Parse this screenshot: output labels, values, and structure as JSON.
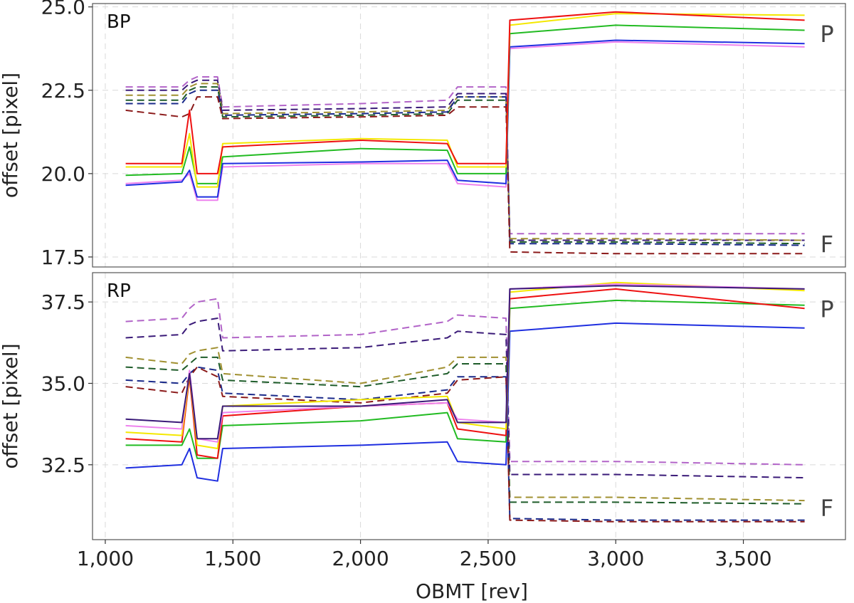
{
  "chart_data": [
    {
      "type": "line",
      "panel_label": "BP",
      "xlabel": "",
      "ylabel": "offset [pixel]",
      "xlim": [
        950,
        3900
      ],
      "ylim": [
        17.2,
        25.1
      ],
      "xticks": [
        1000,
        1500,
        2000,
        2500,
        3000,
        3500
      ],
      "xtick_labels": [
        "1,000",
        "1,500",
        "2,000",
        "2,500",
        "3,000",
        "3,500"
      ],
      "yticks": [
        17.5,
        20.0,
        22.5,
        25.0
      ],
      "ytick_labels": [
        "17.5",
        "20.0",
        "22.5",
        "25.0"
      ],
      "grid": true,
      "annotations": [
        {
          "text": "P",
          "y": 24.2
        },
        {
          "text": "F",
          "y": 17.9
        }
      ],
      "series": [
        {
          "name": "BP P violet",
          "color": "#ee82ee",
          "style": "solid",
          "x": [
            1080,
            1300,
            1330,
            1360,
            1440,
            1460,
            2000,
            2340,
            2380,
            2570,
            2585,
            3000,
            3740
          ],
          "y": [
            19.7,
            19.8,
            20.0,
            19.2,
            19.2,
            20.2,
            20.3,
            20.3,
            19.7,
            19.6,
            23.75,
            23.95,
            23.8
          ]
        },
        {
          "name": "BP P blue",
          "color": "#1f2fe0",
          "style": "solid",
          "x": [
            1080,
            1300,
            1330,
            1360,
            1440,
            1460,
            2000,
            2340,
            2380,
            2570,
            2585,
            3000,
            3740
          ],
          "y": [
            19.65,
            19.75,
            20.1,
            19.3,
            19.3,
            20.3,
            20.35,
            20.4,
            19.8,
            19.7,
            23.8,
            24.0,
            23.9
          ]
        },
        {
          "name": "BP P green",
          "color": "#22bb22",
          "style": "solid",
          "x": [
            1080,
            1300,
            1330,
            1360,
            1440,
            1460,
            2000,
            2340,
            2380,
            2570,
            2585,
            3000,
            3740
          ],
          "y": [
            19.95,
            20.0,
            20.8,
            19.7,
            19.7,
            20.5,
            20.75,
            20.7,
            20.0,
            20.0,
            24.2,
            24.45,
            24.3
          ]
        },
        {
          "name": "BP P yellow",
          "color": "#f4e800",
          "style": "solid",
          "x": [
            1080,
            1300,
            1330,
            1360,
            1440,
            1460,
            2000,
            2340,
            2380,
            2570,
            2585,
            3000,
            3740
          ],
          "y": [
            20.2,
            20.2,
            21.2,
            19.6,
            19.6,
            20.9,
            21.05,
            21.0,
            20.2,
            20.2,
            24.45,
            24.8,
            24.75
          ]
        },
        {
          "name": "BP P red",
          "color": "#ee1111",
          "style": "solid",
          "x": [
            1080,
            1300,
            1330,
            1360,
            1440,
            1460,
            2000,
            2340,
            2380,
            2570,
            2585,
            3000,
            3740
          ],
          "y": [
            20.3,
            20.3,
            21.9,
            20.0,
            20.0,
            20.8,
            21.0,
            20.9,
            20.3,
            20.3,
            24.6,
            24.85,
            24.6
          ]
        },
        {
          "name": "BP F violet",
          "color": "#b264c8",
          "style": "dashed",
          "x": [
            1080,
            1300,
            1330,
            1360,
            1440,
            1460,
            2000,
            2340,
            2380,
            2570,
            2585,
            3000,
            3740
          ],
          "y": [
            22.6,
            22.6,
            22.8,
            22.9,
            22.9,
            22.0,
            22.1,
            22.2,
            22.6,
            22.6,
            18.2,
            18.2,
            18.2
          ]
        },
        {
          "name": "BP F indigo",
          "color": "#3a1a78",
          "style": "dashed",
          "x": [
            1080,
            1300,
            1330,
            1360,
            1440,
            1460,
            2000,
            2340,
            2380,
            2570,
            2585,
            3000,
            3740
          ],
          "y": [
            22.5,
            22.5,
            22.7,
            22.8,
            22.8,
            21.9,
            21.95,
            22.0,
            22.4,
            22.4,
            18.0,
            18.0,
            18.0
          ]
        },
        {
          "name": "BP F olive",
          "color": "#a09030",
          "style": "dashed",
          "x": [
            1080,
            1300,
            1330,
            1360,
            1440,
            1460,
            2000,
            2340,
            2380,
            2570,
            2585,
            3000,
            3740
          ],
          "y": [
            22.35,
            22.35,
            22.6,
            22.7,
            22.7,
            21.8,
            21.85,
            21.9,
            22.3,
            22.3,
            18.05,
            18.05,
            18.0
          ]
        },
        {
          "name": "BP F dark green",
          "color": "#1e5c2a",
          "style": "dashed",
          "x": [
            1080,
            1300,
            1330,
            1360,
            1440,
            1460,
            2000,
            2340,
            2380,
            2570,
            2585,
            3000,
            3740
          ],
          "y": [
            22.2,
            22.2,
            22.5,
            22.6,
            22.6,
            21.7,
            21.75,
            21.8,
            22.2,
            22.2,
            17.95,
            17.95,
            17.9
          ]
        },
        {
          "name": "BP F navy",
          "color": "#1a2a8a",
          "style": "dashed",
          "x": [
            1080,
            1300,
            1330,
            1360,
            1440,
            1460,
            2000,
            2340,
            2380,
            2570,
            2585,
            3000,
            3740
          ],
          "y": [
            22.1,
            22.1,
            22.4,
            22.5,
            22.5,
            21.75,
            21.8,
            21.85,
            22.3,
            22.3,
            17.9,
            17.9,
            17.85
          ]
        },
        {
          "name": "BP F dark red",
          "color": "#8b1a1a",
          "style": "dashed",
          "x": [
            1080,
            1300,
            1330,
            1360,
            1440,
            1460,
            2000,
            2340,
            2380,
            2570,
            2585,
            3000,
            3740
          ],
          "y": [
            21.9,
            21.7,
            21.8,
            22.3,
            22.3,
            21.65,
            21.7,
            21.75,
            22.0,
            22.0,
            17.65,
            17.6,
            17.6
          ]
        }
      ]
    },
    {
      "type": "line",
      "panel_label": "RP",
      "xlabel": "OBMT [rev]",
      "ylabel": "offset [pixel]",
      "xlim": [
        950,
        3900
      ],
      "ylim": [
        30.2,
        38.4
      ],
      "xticks": [
        1000,
        1500,
        2000,
        2500,
        3000,
        3500
      ],
      "xtick_labels": [
        "1,000",
        "1,500",
        "2,000",
        "2,500",
        "3,000",
        "3,500"
      ],
      "yticks": [
        32.5,
        35.0,
        37.5
      ],
      "ytick_labels": [
        "32.5",
        "35.0",
        "37.5"
      ],
      "grid": true,
      "annotations": [
        {
          "text": "P",
          "y": 37.3
        },
        {
          "text": "F",
          "y": 31.2
        }
      ],
      "series": [
        {
          "name": "RP P blue",
          "color": "#1f2fe0",
          "style": "solid",
          "x": [
            1080,
            1300,
            1330,
            1360,
            1440,
            1460,
            2000,
            2340,
            2380,
            2570,
            2585,
            3000,
            3740
          ],
          "y": [
            32.4,
            32.5,
            33.0,
            32.1,
            32.0,
            33.0,
            33.1,
            33.2,
            32.6,
            32.5,
            36.6,
            36.85,
            36.7
          ]
        },
        {
          "name": "RP P green",
          "color": "#22bb22",
          "style": "solid",
          "x": [
            1080,
            1300,
            1330,
            1360,
            1440,
            1460,
            2000,
            2340,
            2380,
            2570,
            2585,
            3000,
            3740
          ],
          "y": [
            33.1,
            33.1,
            33.6,
            32.7,
            32.7,
            33.7,
            33.85,
            34.1,
            33.3,
            33.2,
            37.3,
            37.55,
            37.4
          ]
        },
        {
          "name": "RP P red",
          "color": "#ee1111",
          "style": "solid",
          "x": [
            1080,
            1300,
            1330,
            1360,
            1440,
            1460,
            2000,
            2340,
            2380,
            2570,
            2585,
            3000,
            3740
          ],
          "y": [
            33.3,
            33.2,
            35.2,
            32.8,
            32.7,
            34.0,
            34.3,
            34.4,
            33.6,
            33.4,
            37.6,
            37.9,
            37.3
          ]
        },
        {
          "name": "RP P yellow",
          "color": "#f4e800",
          "style": "solid",
          "x": [
            1080,
            1300,
            1330,
            1360,
            1440,
            1460,
            2000,
            2340,
            2380,
            2570,
            2585,
            3000,
            3740
          ],
          "y": [
            33.5,
            33.4,
            35.3,
            33.1,
            33.0,
            34.3,
            34.5,
            34.6,
            33.8,
            33.6,
            37.8,
            38.1,
            37.85
          ]
        },
        {
          "name": "RP P violet",
          "color": "#ee82ee",
          "style": "solid",
          "x": [
            1080,
            1300,
            1330,
            1360,
            1440,
            1460,
            2000,
            2340,
            2380,
            2570,
            2585,
            3000,
            3740
          ],
          "y": [
            33.7,
            33.6,
            35.4,
            33.3,
            33.2,
            34.1,
            34.3,
            34.4,
            33.9,
            33.8,
            37.9,
            38.05,
            37.9
          ]
        },
        {
          "name": "RP P indigo",
          "color": "#3a1a78",
          "style": "solid",
          "x": [
            1080,
            1300,
            1330,
            1360,
            1440,
            1460,
            2000,
            2340,
            2380,
            2570,
            2585,
            3000,
            3740
          ],
          "y": [
            33.9,
            33.8,
            35.3,
            33.3,
            33.3,
            34.3,
            34.3,
            34.5,
            33.8,
            33.8,
            37.9,
            38.0,
            37.9
          ]
        },
        {
          "name": "RP F violet",
          "color": "#b264c8",
          "style": "dashed",
          "x": [
            1080,
            1300,
            1330,
            1360,
            1440,
            1460,
            2000,
            2340,
            2380,
            2570,
            2585,
            3000,
            3740
          ],
          "y": [
            36.9,
            37.0,
            37.3,
            37.5,
            37.6,
            36.4,
            36.5,
            36.9,
            37.1,
            37.0,
            32.6,
            32.6,
            32.5
          ]
        },
        {
          "name": "RP F indigo",
          "color": "#3a1a78",
          "style": "dashed",
          "x": [
            1080,
            1300,
            1330,
            1360,
            1440,
            1460,
            2000,
            2340,
            2380,
            2570,
            2585,
            3000,
            3740
          ],
          "y": [
            36.4,
            36.5,
            36.8,
            36.9,
            37.0,
            36.0,
            36.1,
            36.4,
            36.6,
            36.5,
            32.2,
            32.2,
            32.1
          ]
        },
        {
          "name": "RP F olive",
          "color": "#a09030",
          "style": "dashed",
          "x": [
            1080,
            1300,
            1330,
            1360,
            1440,
            1460,
            2000,
            2340,
            2380,
            2570,
            2585,
            3000,
            3740
          ],
          "y": [
            35.8,
            35.6,
            35.9,
            36.0,
            36.1,
            35.3,
            35.0,
            35.5,
            35.8,
            35.8,
            31.5,
            31.5,
            31.4
          ]
        },
        {
          "name": "RP F dark green",
          "color": "#1e5c2a",
          "style": "dashed",
          "x": [
            1080,
            1300,
            1330,
            1360,
            1440,
            1460,
            2000,
            2340,
            2380,
            2570,
            2585,
            3000,
            3740
          ],
          "y": [
            35.5,
            35.4,
            35.6,
            35.8,
            35.8,
            35.1,
            34.9,
            35.3,
            35.6,
            35.6,
            31.35,
            31.35,
            31.3
          ]
        },
        {
          "name": "RP F navy",
          "color": "#1a2a8a",
          "style": "dashed",
          "x": [
            1080,
            1300,
            1330,
            1360,
            1440,
            1460,
            2000,
            2340,
            2380,
            2570,
            2585,
            3000,
            3740
          ],
          "y": [
            35.1,
            35.0,
            35.3,
            35.5,
            35.4,
            34.7,
            34.5,
            34.8,
            35.2,
            35.2,
            30.85,
            30.8,
            30.8
          ]
        },
        {
          "name": "RP F dark red",
          "color": "#8b1a1a",
          "style": "dashed",
          "x": [
            1080,
            1300,
            1330,
            1360,
            1440,
            1460,
            2000,
            2340,
            2380,
            2570,
            2585,
            3000,
            3740
          ],
          "y": [
            34.9,
            34.7,
            35.2,
            35.5,
            35.2,
            34.6,
            34.4,
            34.7,
            35.1,
            35.2,
            30.8,
            30.75,
            30.75
          ]
        }
      ]
    }
  ]
}
